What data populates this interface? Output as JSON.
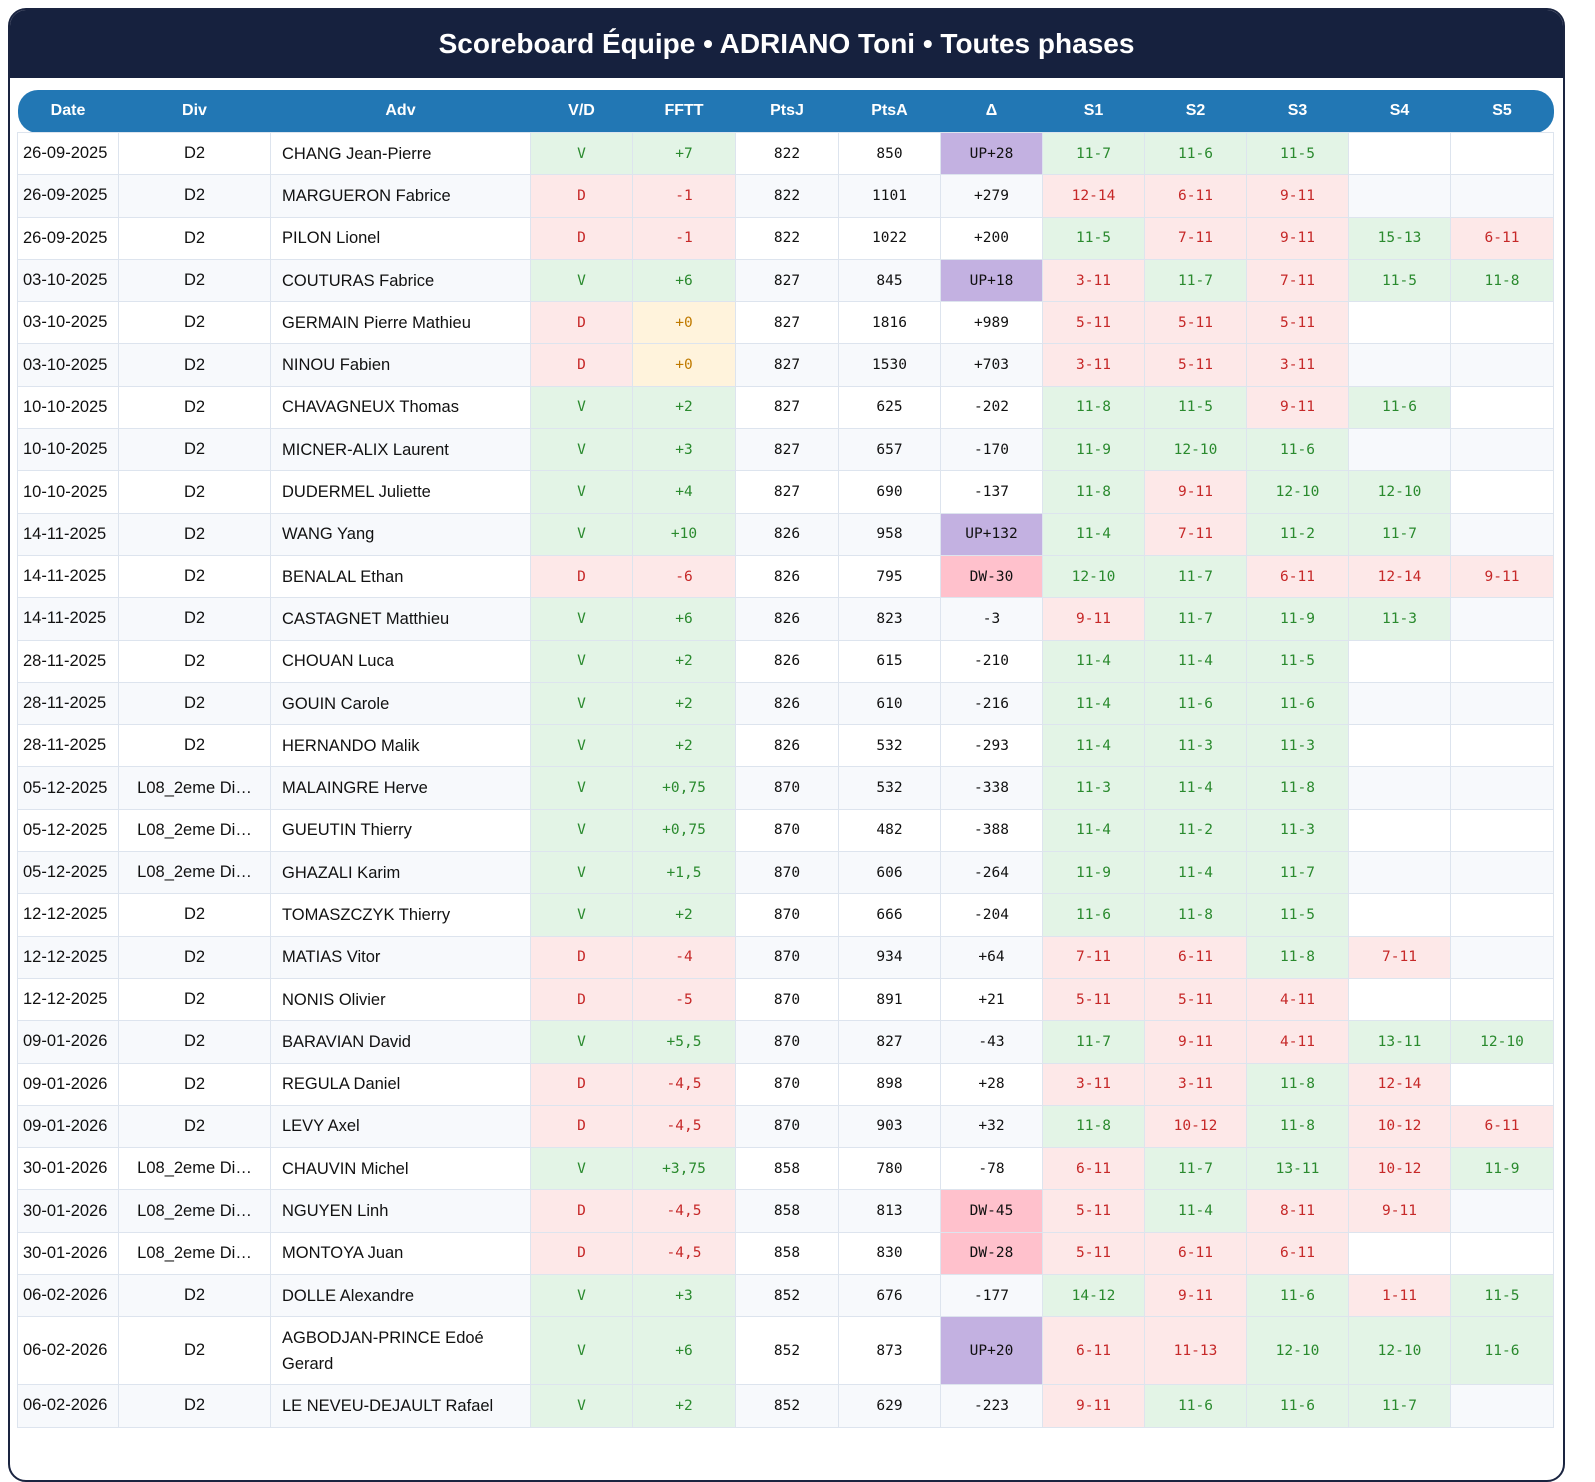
{
  "title": "Scoreboard Équipe • ADRIANO Toni • Toutes phases",
  "columns": [
    "Date",
    "Div",
    "Adv",
    "V/D",
    "FFTT",
    "PtsJ",
    "PtsA",
    "Δ",
    "S1",
    "S2",
    "S3",
    "S4",
    "S5"
  ],
  "colors": {
    "header_bg": "#16213e",
    "table_header_bg": "#2277b4",
    "win_bg": "#e3f4e6",
    "loss_bg": "#fde8e8",
    "zero_bg": "#fff3dc",
    "up_bg": "#c3b1e1",
    "dw_bg": "#ffc1cc"
  },
  "rows": [
    {
      "date": "26-09-2025",
      "div": "D2",
      "adv": "CHANG Jean-Pierre",
      "vd": "V",
      "fftt": "+7",
      "ptsj": "822",
      "ptsa": "850",
      "delta": "UP+28",
      "sets": [
        "11-7",
        "11-6",
        "11-5",
        "",
        ""
      ]
    },
    {
      "date": "26-09-2025",
      "div": "D2",
      "adv": "MARGUERON Fabrice",
      "vd": "D",
      "fftt": "-1",
      "ptsj": "822",
      "ptsa": "1101",
      "delta": "+279",
      "sets": [
        "12-14",
        "6-11",
        "9-11",
        "",
        ""
      ]
    },
    {
      "date": "26-09-2025",
      "div": "D2",
      "adv": "PILON Lionel",
      "vd": "D",
      "fftt": "-1",
      "ptsj": "822",
      "ptsa": "1022",
      "delta": "+200",
      "sets": [
        "11-5",
        "7-11",
        "9-11",
        "15-13",
        "6-11"
      ]
    },
    {
      "date": "03-10-2025",
      "div": "D2",
      "adv": "COUTURAS Fabrice",
      "vd": "V",
      "fftt": "+6",
      "ptsj": "827",
      "ptsa": "845",
      "delta": "UP+18",
      "sets": [
        "3-11",
        "11-7",
        "7-11",
        "11-5",
        "11-8"
      ]
    },
    {
      "date": "03-10-2025",
      "div": "D2",
      "adv": "GERMAIN Pierre Mathieu",
      "vd": "D",
      "fftt": "+0",
      "ptsj": "827",
      "ptsa": "1816",
      "delta": "+989",
      "sets": [
        "5-11",
        "5-11",
        "5-11",
        "",
        ""
      ]
    },
    {
      "date": "03-10-2025",
      "div": "D2",
      "adv": "NINOU Fabien",
      "vd": "D",
      "fftt": "+0",
      "ptsj": "827",
      "ptsa": "1530",
      "delta": "+703",
      "sets": [
        "3-11",
        "5-11",
        "3-11",
        "",
        ""
      ]
    },
    {
      "date": "10-10-2025",
      "div": "D2",
      "adv": "CHAVAGNEUX Thomas",
      "vd": "V",
      "fftt": "+2",
      "ptsj": "827",
      "ptsa": "625",
      "delta": "-202",
      "sets": [
        "11-8",
        "11-5",
        "9-11",
        "11-6",
        ""
      ]
    },
    {
      "date": "10-10-2025",
      "div": "D2",
      "adv": "MICNER-ALIX Laurent",
      "vd": "V",
      "fftt": "+3",
      "ptsj": "827",
      "ptsa": "657",
      "delta": "-170",
      "sets": [
        "11-9",
        "12-10",
        "11-6",
        "",
        ""
      ]
    },
    {
      "date": "10-10-2025",
      "div": "D2",
      "adv": "DUDERMEL Juliette",
      "vd": "V",
      "fftt": "+4",
      "ptsj": "827",
      "ptsa": "690",
      "delta": "-137",
      "sets": [
        "11-8",
        "9-11",
        "12-10",
        "12-10",
        ""
      ]
    },
    {
      "date": "14-11-2025",
      "div": "D2",
      "adv": "WANG Yang",
      "vd": "V",
      "fftt": "+10",
      "ptsj": "826",
      "ptsa": "958",
      "delta": "UP+132",
      "sets": [
        "11-4",
        "7-11",
        "11-2",
        "11-7",
        ""
      ]
    },
    {
      "date": "14-11-2025",
      "div": "D2",
      "adv": "BENALAL Ethan",
      "vd": "D",
      "fftt": "-6",
      "ptsj": "826",
      "ptsa": "795",
      "delta": "DW-30",
      "sets": [
        "12-10",
        "11-7",
        "6-11",
        "12-14",
        "9-11"
      ]
    },
    {
      "date": "14-11-2025",
      "div": "D2",
      "adv": "CASTAGNET Matthieu",
      "vd": "V",
      "fftt": "+6",
      "ptsj": "826",
      "ptsa": "823",
      "delta": "-3",
      "sets": [
        "9-11",
        "11-7",
        "11-9",
        "11-3",
        ""
      ]
    },
    {
      "date": "28-11-2025",
      "div": "D2",
      "adv": "CHOUAN Luca",
      "vd": "V",
      "fftt": "+2",
      "ptsj": "826",
      "ptsa": "615",
      "delta": "-210",
      "sets": [
        "11-4",
        "11-4",
        "11-5",
        "",
        ""
      ]
    },
    {
      "date": "28-11-2025",
      "div": "D2",
      "adv": "GOUIN Carole",
      "vd": "V",
      "fftt": "+2",
      "ptsj": "826",
      "ptsa": "610",
      "delta": "-216",
      "sets": [
        "11-4",
        "11-6",
        "11-6",
        "",
        ""
      ]
    },
    {
      "date": "28-11-2025",
      "div": "D2",
      "adv": "HERNANDO Malik",
      "vd": "V",
      "fftt": "+2",
      "ptsj": "826",
      "ptsa": "532",
      "delta": "-293",
      "sets": [
        "11-4",
        "11-3",
        "11-3",
        "",
        ""
      ]
    },
    {
      "date": "05-12-2025",
      "div": "L08_2eme Di…",
      "adv": "MALAINGRE Herve",
      "vd": "V",
      "fftt": "+0,75",
      "ptsj": "870",
      "ptsa": "532",
      "delta": "-338",
      "sets": [
        "11-3",
        "11-4",
        "11-8",
        "",
        ""
      ]
    },
    {
      "date": "05-12-2025",
      "div": "L08_2eme Di…",
      "adv": "GUEUTIN Thierry",
      "vd": "V",
      "fftt": "+0,75",
      "ptsj": "870",
      "ptsa": "482",
      "delta": "-388",
      "sets": [
        "11-4",
        "11-2",
        "11-3",
        "",
        ""
      ]
    },
    {
      "date": "05-12-2025",
      "div": "L08_2eme Di…",
      "adv": "GHAZALI Karim",
      "vd": "V",
      "fftt": "+1,5",
      "ptsj": "870",
      "ptsa": "606",
      "delta": "-264",
      "sets": [
        "11-9",
        "11-4",
        "11-7",
        "",
        ""
      ]
    },
    {
      "date": "12-12-2025",
      "div": "D2",
      "adv": "TOMASZCZYK Thierry",
      "vd": "V",
      "fftt": "+2",
      "ptsj": "870",
      "ptsa": "666",
      "delta": "-204",
      "sets": [
        "11-6",
        "11-8",
        "11-5",
        "",
        ""
      ]
    },
    {
      "date": "12-12-2025",
      "div": "D2",
      "adv": "MATIAS Vitor",
      "vd": "D",
      "fftt": "-4",
      "ptsj": "870",
      "ptsa": "934",
      "delta": "+64",
      "sets": [
        "7-11",
        "6-11",
        "11-8",
        "7-11",
        ""
      ]
    },
    {
      "date": "12-12-2025",
      "div": "D2",
      "adv": "NONIS Olivier",
      "vd": "D",
      "fftt": "-5",
      "ptsj": "870",
      "ptsa": "891",
      "delta": "+21",
      "sets": [
        "5-11",
        "5-11",
        "4-11",
        "",
        ""
      ]
    },
    {
      "date": "09-01-2026",
      "div": "D2",
      "adv": "BARAVIAN David",
      "vd": "V",
      "fftt": "+5,5",
      "ptsj": "870",
      "ptsa": "827",
      "delta": "-43",
      "sets": [
        "11-7",
        "9-11",
        "4-11",
        "13-11",
        "12-10"
      ]
    },
    {
      "date": "09-01-2026",
      "div": "D2",
      "adv": "REGULA Daniel",
      "vd": "D",
      "fftt": "-4,5",
      "ptsj": "870",
      "ptsa": "898",
      "delta": "+28",
      "sets": [
        "3-11",
        "3-11",
        "11-8",
        "12-14",
        ""
      ]
    },
    {
      "date": "09-01-2026",
      "div": "D2",
      "adv": "LEVY Axel",
      "vd": "D",
      "fftt": "-4,5",
      "ptsj": "870",
      "ptsa": "903",
      "delta": "+32",
      "sets": [
        "11-8",
        "10-12",
        "11-8",
        "10-12",
        "6-11"
      ]
    },
    {
      "date": "30-01-2026",
      "div": "L08_2eme Di…",
      "adv": "CHAUVIN Michel",
      "vd": "V",
      "fftt": "+3,75",
      "ptsj": "858",
      "ptsa": "780",
      "delta": "-78",
      "sets": [
        "6-11",
        "11-7",
        "13-11",
        "10-12",
        "11-9"
      ]
    },
    {
      "date": "30-01-2026",
      "div": "L08_2eme Di…",
      "adv": "NGUYEN Linh",
      "vd": "D",
      "fftt": "-4,5",
      "ptsj": "858",
      "ptsa": "813",
      "delta": "DW-45",
      "sets": [
        "5-11",
        "11-4",
        "8-11",
        "9-11",
        ""
      ]
    },
    {
      "date": "30-01-2026",
      "div": "L08_2eme Di…",
      "adv": "MONTOYA Juan",
      "vd": "D",
      "fftt": "-4,5",
      "ptsj": "858",
      "ptsa": "830",
      "delta": "DW-28",
      "sets": [
        "5-11",
        "6-11",
        "6-11",
        "",
        ""
      ]
    },
    {
      "date": "06-02-2026",
      "div": "D2",
      "adv": "DOLLE Alexandre",
      "vd": "V",
      "fftt": "+3",
      "ptsj": "852",
      "ptsa": "676",
      "delta": "-177",
      "sets": [
        "14-12",
        "9-11",
        "11-6",
        "1-11",
        "11-5"
      ]
    },
    {
      "date": "06-02-2026",
      "div": "D2",
      "adv": "AGBODJAN-PRINCE Edoé Gerard",
      "vd": "V",
      "fftt": "+6",
      "ptsj": "852",
      "ptsa": "873",
      "delta": "UP+20",
      "sets": [
        "6-11",
        "11-13",
        "12-10",
        "12-10",
        "11-6"
      ]
    },
    {
      "date": "06-02-2026",
      "div": "D2",
      "adv": "LE NEVEU-DEJAULT Rafael",
      "vd": "V",
      "fftt": "+2",
      "ptsj": "852",
      "ptsa": "629",
      "delta": "-223",
      "sets": [
        "9-11",
        "11-6",
        "11-6",
        "11-7",
        ""
      ]
    }
  ]
}
